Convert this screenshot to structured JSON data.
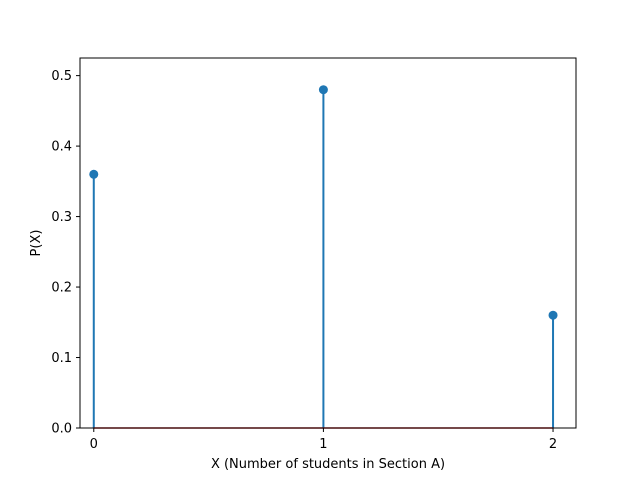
{
  "chart_data": {
    "type": "stem",
    "title": "",
    "xlabel": "X (Number of students in Section A)",
    "ylabel": "P(X)",
    "x": [
      0,
      1,
      2
    ],
    "values": [
      0.36,
      0.48,
      0.16
    ],
    "xlim": [
      -0.06,
      2.1
    ],
    "ylim": [
      0.0,
      0.525
    ],
    "xticks": [
      0,
      1,
      2
    ],
    "xtick_labels": [
      "0",
      "1",
      "2"
    ],
    "yticks": [
      0.0,
      0.1,
      0.2,
      0.3,
      0.4,
      0.5
    ],
    "ytick_labels": [
      "0.0",
      "0.1",
      "0.2",
      "0.3",
      "0.4",
      "0.5"
    ],
    "grid": false,
    "legend": "none",
    "colors": {
      "stem": "#1f77b4",
      "baseline": "#d62728",
      "axis": "#000000"
    }
  }
}
